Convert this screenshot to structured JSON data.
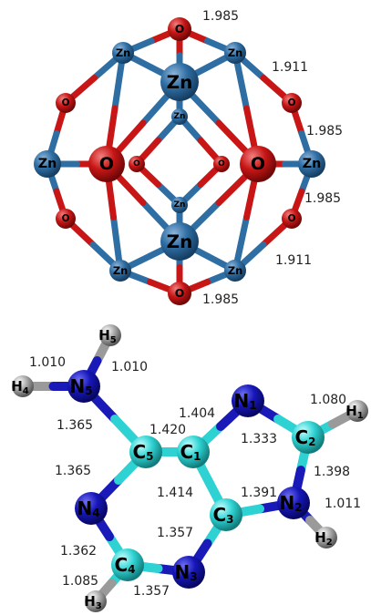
{
  "top": {
    "atoms": [
      "O",
      "Zn",
      "Zn",
      "Zn",
      "O",
      "O",
      "Zn",
      "O",
      "O",
      "O",
      "O",
      "Zn",
      "Zn",
      "Zn",
      "O",
      "O",
      "Zn",
      "Zn",
      "Zn",
      "O"
    ],
    "bond_lengths": [
      "1.985",
      "1.911",
      "1.985",
      "1.985",
      "1.911",
      "1.985"
    ]
  },
  "bottom": {
    "atoms": [
      {
        "symbol": "H",
        "index": "5"
      },
      {
        "symbol": "H",
        "index": "4"
      },
      {
        "symbol": "N",
        "index": "5"
      },
      {
        "symbol": "C",
        "index": "5"
      },
      {
        "symbol": "C",
        "index": "1"
      },
      {
        "symbol": "N",
        "index": "1"
      },
      {
        "symbol": "C",
        "index": "2"
      },
      {
        "symbol": "H",
        "index": "1"
      },
      {
        "symbol": "N",
        "index": "2"
      },
      {
        "symbol": "H",
        "index": "2"
      },
      {
        "symbol": "C",
        "index": "3"
      },
      {
        "symbol": "N",
        "index": "3"
      },
      {
        "symbol": "C",
        "index": "4"
      },
      {
        "symbol": "H",
        "index": "3"
      },
      {
        "symbol": "N",
        "index": "4"
      }
    ],
    "bond_lengths": [
      "1.010",
      "1.010",
      "1.404",
      "1.080",
      "1.365",
      "1.420",
      "1.333",
      "1.398",
      "1.365",
      "1.414",
      "1.391",
      "1.011",
      "1.357",
      "1.362",
      "1.085",
      "1.357"
    ]
  }
}
